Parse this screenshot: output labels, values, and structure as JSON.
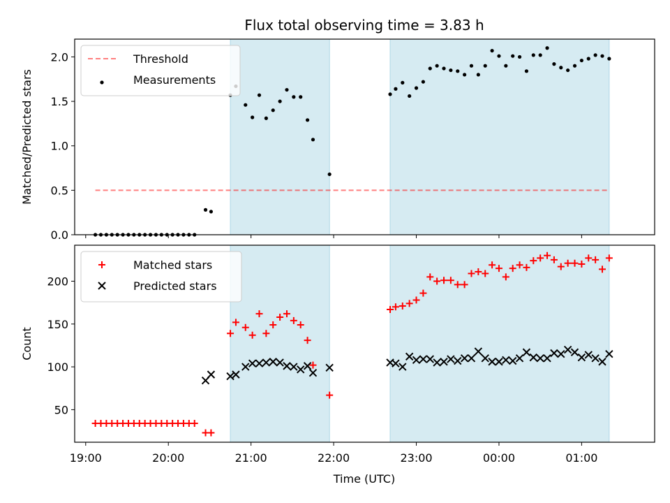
{
  "title": "Flux total observing time = 3.83 h",
  "colors": {
    "span": "#add8e6",
    "threshold": "#ff0000",
    "matched": "#ff0000",
    "predicted": "#000000",
    "measurement": "#000000"
  },
  "chart_data": [
    {
      "type": "scatter",
      "title": "Flux total observing time = 3.83 h",
      "xlabel": "",
      "ylabel": "Matched/Predicted stars",
      "xlim": [
        "18:52",
        "01:53"
      ],
      "ylim": [
        0,
        2.2
      ],
      "yticks": [
        0.0,
        0.5,
        1.0,
        1.5,
        2.0
      ],
      "ytick_labels": [
        "0.0",
        "0.5",
        "1.0",
        "1.5",
        "2.0"
      ],
      "xticks": [
        "19:00",
        "20:00",
        "21:00",
        "22:00",
        "23:00",
        "00:00",
        "01:00"
      ],
      "legend": "top-left",
      "shaded_spans": [
        [
          "20:45",
          "21:57"
        ],
        [
          "22:41",
          "01:20"
        ]
      ],
      "threshold": {
        "name": "Threshold",
        "value": 0.5,
        "x_range": [
          "19:07",
          "01:20"
        ]
      },
      "series": [
        {
          "name": "Measurements",
          "marker": "dot",
          "points": [
            [
              "19:07",
              0.0
            ],
            [
              "19:11",
              0.0
            ],
            [
              "19:15",
              0.0
            ],
            [
              "19:19",
              0.0
            ],
            [
              "19:23",
              0.0
            ],
            [
              "19:27",
              0.0
            ],
            [
              "19:31",
              0.0
            ],
            [
              "19:35",
              0.0
            ],
            [
              "19:39",
              0.0
            ],
            [
              "19:43",
              0.0
            ],
            [
              "19:47",
              0.0
            ],
            [
              "19:51",
              0.0
            ],
            [
              "19:55",
              0.0
            ],
            [
              "19:59",
              0.0
            ],
            [
              "20:03",
              0.0
            ],
            [
              "20:07",
              0.0
            ],
            [
              "20:11",
              0.0
            ],
            [
              "20:15",
              0.0
            ],
            [
              "20:19",
              0.0
            ],
            [
              "20:27",
              0.28
            ],
            [
              "20:31",
              0.26
            ],
            [
              "20:45",
              1.57
            ],
            [
              "20:49",
              1.67
            ],
            [
              "20:56",
              1.46
            ],
            [
              "21:01",
              1.32
            ],
            [
              "21:06",
              1.57
            ],
            [
              "21:11",
              1.31
            ],
            [
              "21:16",
              1.4
            ],
            [
              "21:21",
              1.5
            ],
            [
              "21:26",
              1.63
            ],
            [
              "21:31",
              1.55
            ],
            [
              "21:36",
              1.55
            ],
            [
              "21:41",
              1.29
            ],
            [
              "21:45",
              1.07
            ],
            [
              "21:57",
              0.68
            ],
            [
              "22:41",
              1.58
            ],
            [
              "22:45",
              1.64
            ],
            [
              "22:50",
              1.71
            ],
            [
              "22:55",
              1.56
            ],
            [
              "23:00",
              1.65
            ],
            [
              "23:05",
              1.72
            ],
            [
              "23:10",
              1.87
            ],
            [
              "23:15",
              1.9
            ],
            [
              "23:20",
              1.87
            ],
            [
              "23:25",
              1.85
            ],
            [
              "23:30",
              1.84
            ],
            [
              "23:35",
              1.8
            ],
            [
              "23:40",
              1.9
            ],
            [
              "23:45",
              1.8
            ],
            [
              "23:50",
              1.9
            ],
            [
              "23:55",
              2.07
            ],
            [
              "00:00",
              2.01
            ],
            [
              "00:05",
              1.9
            ],
            [
              "00:10",
              2.01
            ],
            [
              "00:15",
              2.0
            ],
            [
              "00:20",
              1.84
            ],
            [
              "00:25",
              2.02
            ],
            [
              "00:30",
              2.02
            ],
            [
              "00:35",
              2.1
            ],
            [
              "00:40",
              1.92
            ],
            [
              "00:45",
              1.88
            ],
            [
              "00:50",
              1.85
            ],
            [
              "00:55",
              1.9
            ],
            [
              "01:00",
              1.96
            ],
            [
              "01:05",
              1.98
            ],
            [
              "01:10",
              2.02
            ],
            [
              "01:15",
              2.01
            ],
            [
              "01:20",
              1.98
            ]
          ]
        }
      ]
    },
    {
      "type": "scatter",
      "title": "",
      "xlabel": "Time (UTC)",
      "ylabel": "Count",
      "xlim": [
        "18:52",
        "01:53"
      ],
      "ylim": [
        12,
        242
      ],
      "yticks": [
        50,
        100,
        150,
        200
      ],
      "ytick_labels": [
        "50",
        "100",
        "150",
        "200"
      ],
      "xticks": [
        "19:00",
        "20:00",
        "21:00",
        "22:00",
        "23:00",
        "00:00",
        "01:00"
      ],
      "legend": "top-left",
      "shaded_spans": [
        [
          "20:45",
          "21:57"
        ],
        [
          "22:41",
          "01:20"
        ]
      ],
      "series": [
        {
          "name": "Matched stars",
          "marker": "plus",
          "points": [
            [
              "19:07",
              34
            ],
            [
              "19:11",
              34
            ],
            [
              "19:15",
              34
            ],
            [
              "19:19",
              34
            ],
            [
              "19:23",
              34
            ],
            [
              "19:27",
              34
            ],
            [
              "19:31",
              34
            ],
            [
              "19:35",
              34
            ],
            [
              "19:39",
              34
            ],
            [
              "19:43",
              34
            ],
            [
              "19:47",
              34
            ],
            [
              "19:51",
              34
            ],
            [
              "19:55",
              34
            ],
            [
              "19:59",
              34
            ],
            [
              "20:03",
              34
            ],
            [
              "20:07",
              34
            ],
            [
              "20:11",
              34
            ],
            [
              "20:15",
              34
            ],
            [
              "20:19",
              34
            ],
            [
              "20:27",
              23
            ],
            [
              "20:31",
              23
            ],
            [
              "20:45",
              139
            ],
            [
              "20:49",
              152
            ],
            [
              "20:56",
              146
            ],
            [
              "21:01",
              137
            ],
            [
              "21:06",
              162
            ],
            [
              "21:11",
              139
            ],
            [
              "21:16",
              149
            ],
            [
              "21:21",
              158
            ],
            [
              "21:26",
              162
            ],
            [
              "21:31",
              154
            ],
            [
              "21:36",
              149
            ],
            [
              "21:41",
              131
            ],
            [
              "21:45",
              102
            ],
            [
              "21:57",
              67
            ],
            [
              "22:41",
              167
            ],
            [
              "22:45",
              170
            ],
            [
              "22:50",
              171
            ],
            [
              "22:55",
              174
            ],
            [
              "23:00",
              178
            ],
            [
              "23:05",
              186
            ],
            [
              "23:10",
              205
            ],
            [
              "23:15",
              200
            ],
            [
              "23:20",
              201
            ],
            [
              "23:25",
              201
            ],
            [
              "23:30",
              196
            ],
            [
              "23:35",
              196
            ],
            [
              "23:40",
              209
            ],
            [
              "23:45",
              211
            ],
            [
              "23:50",
              209
            ],
            [
              "23:55",
              219
            ],
            [
              "00:00",
              215
            ],
            [
              "00:05",
              205
            ],
            [
              "00:10",
              215
            ],
            [
              "00:15",
              219
            ],
            [
              "00:20",
              216
            ],
            [
              "00:25",
              224
            ],
            [
              "00:30",
              227
            ],
            [
              "00:35",
              230
            ],
            [
              "00:40",
              225
            ],
            [
              "00:45",
              217
            ],
            [
              "00:50",
              221
            ],
            [
              "00:55",
              221
            ],
            [
              "01:00",
              220
            ],
            [
              "01:05",
              227
            ],
            [
              "01:10",
              225
            ],
            [
              "01:15",
              214
            ],
            [
              "01:20",
              227
            ]
          ]
        },
        {
          "name": "Predicted stars",
          "marker": "x",
          "points": [
            [
              "20:27",
              84
            ],
            [
              "20:31",
              91
            ],
            [
              "20:45",
              89
            ],
            [
              "20:49",
              91
            ],
            [
              "20:56",
              100
            ],
            [
              "21:01",
              104
            ],
            [
              "21:06",
              104
            ],
            [
              "21:11",
              105
            ],
            [
              "21:16",
              106
            ],
            [
              "21:21",
              105
            ],
            [
              "21:26",
              101
            ],
            [
              "21:31",
              100
            ],
            [
              "21:36",
              97
            ],
            [
              "21:41",
              101
            ],
            [
              "21:45",
              93
            ],
            [
              "21:57",
              99
            ],
            [
              "22:41",
              105
            ],
            [
              "22:45",
              104
            ],
            [
              "22:50",
              100
            ],
            [
              "22:55",
              112
            ],
            [
              "23:00",
              108
            ],
            [
              "23:05",
              109
            ],
            [
              "23:10",
              109
            ],
            [
              "23:15",
              105
            ],
            [
              "23:20",
              106
            ],
            [
              "23:25",
              109
            ],
            [
              "23:30",
              107
            ],
            [
              "23:35",
              110
            ],
            [
              "23:40",
              110
            ],
            [
              "23:45",
              118
            ],
            [
              "23:50",
              110
            ],
            [
              "23:55",
              106
            ],
            [
              "00:00",
              106
            ],
            [
              "00:05",
              108
            ],
            [
              "00:10",
              107
            ],
            [
              "00:15",
              110
            ],
            [
              "00:20",
              117
            ],
            [
              "00:25",
              111
            ],
            [
              "00:30",
              110
            ],
            [
              "00:35",
              110
            ],
            [
              "00:40",
              116
            ],
            [
              "00:45",
              115
            ],
            [
              "00:50",
              120
            ],
            [
              "00:55",
              117
            ],
            [
              "01:00",
              111
            ],
            [
              "01:05",
              114
            ],
            [
              "01:10",
              110
            ],
            [
              "01:15",
              106
            ],
            [
              "01:20",
              115
            ]
          ]
        }
      ]
    }
  ]
}
